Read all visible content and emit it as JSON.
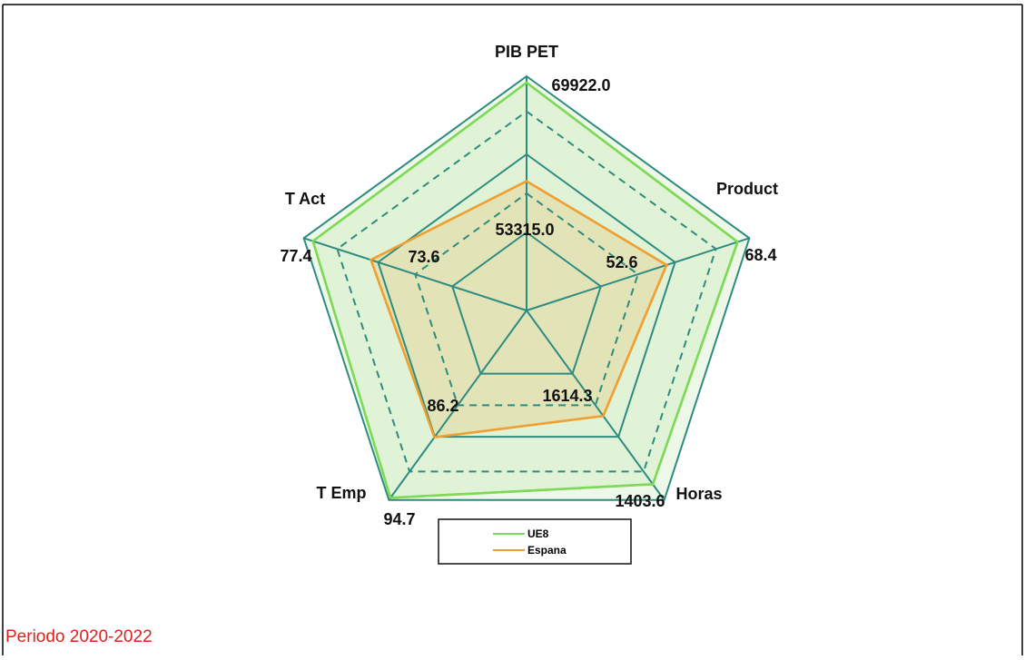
{
  "chart_data": {
    "type": "radar",
    "axes": [
      "PIB PET",
      "Product",
      "Horas",
      "T Emp",
      "T Act"
    ],
    "rlim": [
      [
        31500,
        71000
      ],
      [
        21.5,
        71
      ],
      [
        1940,
        1355
      ],
      [
        68.4,
        95
      ],
      [
        63.4,
        78
      ]
    ],
    "series": [
      {
        "name": "UE8",
        "color": "#7ed957",
        "values": [
          69922,
          68.4,
          1403.6,
          94.7,
          77.4
        ],
        "value_labels": [
          "69922.0",
          "68.4",
          "1403.6",
          "94.7",
          "77.4"
        ]
      },
      {
        "name": "Espana",
        "color": "#f0a030",
        "values": [
          53315,
          52.6,
          1614.3,
          86.2,
          73.6
        ],
        "value_labels": [
          "53315.0",
          "52.6",
          "1614.3",
          "86.2",
          "73.6"
        ]
      }
    ],
    "legend": "bottom"
  },
  "footer": "Periodo 2020-2022"
}
